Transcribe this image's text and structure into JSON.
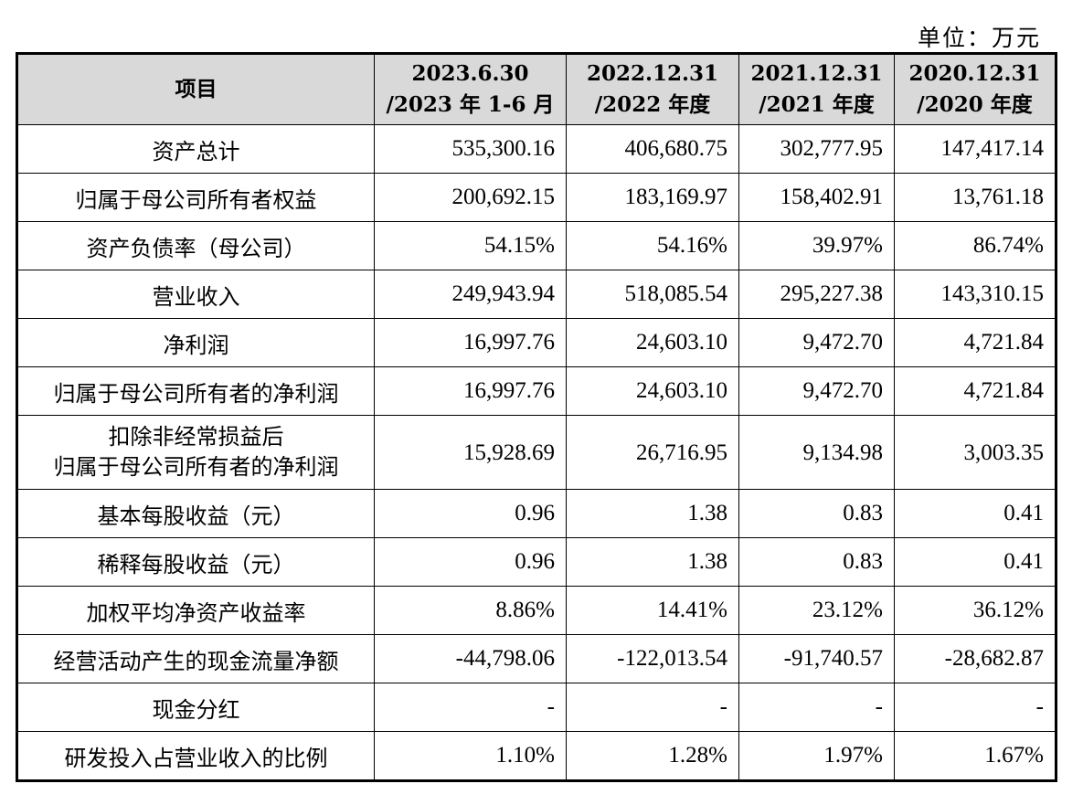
{
  "unit_label": "单位：万元",
  "table": {
    "header": {
      "item": "项目",
      "columns": [
        {
          "line1": "2023.6.30",
          "line2": "/2023 年 1-6 月"
        },
        {
          "line1": "2022.12.31",
          "line2": "/2022 年度"
        },
        {
          "line1": "2021.12.31",
          "line2": "/2021 年度"
        },
        {
          "line1": "2020.12.31",
          "line2": "/2020 年度"
        }
      ]
    },
    "rows": [
      {
        "label": [
          "资产总计"
        ],
        "values": [
          "535,300.16",
          "406,680.75",
          "302,777.95",
          "147,417.14"
        ]
      },
      {
        "label": [
          "归属于母公司所有者权益"
        ],
        "values": [
          "200,692.15",
          "183,169.97",
          "158,402.91",
          "13,761.18"
        ]
      },
      {
        "label": [
          "资产负债率（母公司）"
        ],
        "values": [
          "54.15%",
          "54.16%",
          "39.97%",
          "86.74%"
        ]
      },
      {
        "label": [
          "营业收入"
        ],
        "values": [
          "249,943.94",
          "518,085.54",
          "295,227.38",
          "143,310.15"
        ]
      },
      {
        "label": [
          "净利润"
        ],
        "values": [
          "16,997.76",
          "24,603.10",
          "9,472.70",
          "4,721.84"
        ]
      },
      {
        "label": [
          "归属于母公司所有者的净利润"
        ],
        "values": [
          "16,997.76",
          "24,603.10",
          "9,472.70",
          "4,721.84"
        ]
      },
      {
        "label": [
          "扣除非经常损益后",
          "归属于母公司所有者的净利润"
        ],
        "values": [
          "15,928.69",
          "26,716.95",
          "9,134.98",
          "3,003.35"
        ]
      },
      {
        "label": [
          "基本每股收益（元）"
        ],
        "values": [
          "0.96",
          "1.38",
          "0.83",
          "0.41"
        ]
      },
      {
        "label": [
          "稀释每股收益（元）"
        ],
        "values": [
          "0.96",
          "1.38",
          "0.83",
          "0.41"
        ]
      },
      {
        "label": [
          "加权平均净资产收益率"
        ],
        "values": [
          "8.86%",
          "14.41%",
          "23.12%",
          "36.12%"
        ]
      },
      {
        "label": [
          "经营活动产生的现金流量净额"
        ],
        "values": [
          "-44,798.06",
          "-122,013.54",
          "-91,740.57",
          "-28,682.87"
        ]
      },
      {
        "label": [
          "现金分红"
        ],
        "values": [
          "-",
          "-",
          "-",
          "-"
        ]
      },
      {
        "label": [
          "研发投入占营业收入的比例"
        ],
        "values": [
          "1.10%",
          "1.28%",
          "1.97%",
          "1.67%"
        ]
      }
    ]
  }
}
